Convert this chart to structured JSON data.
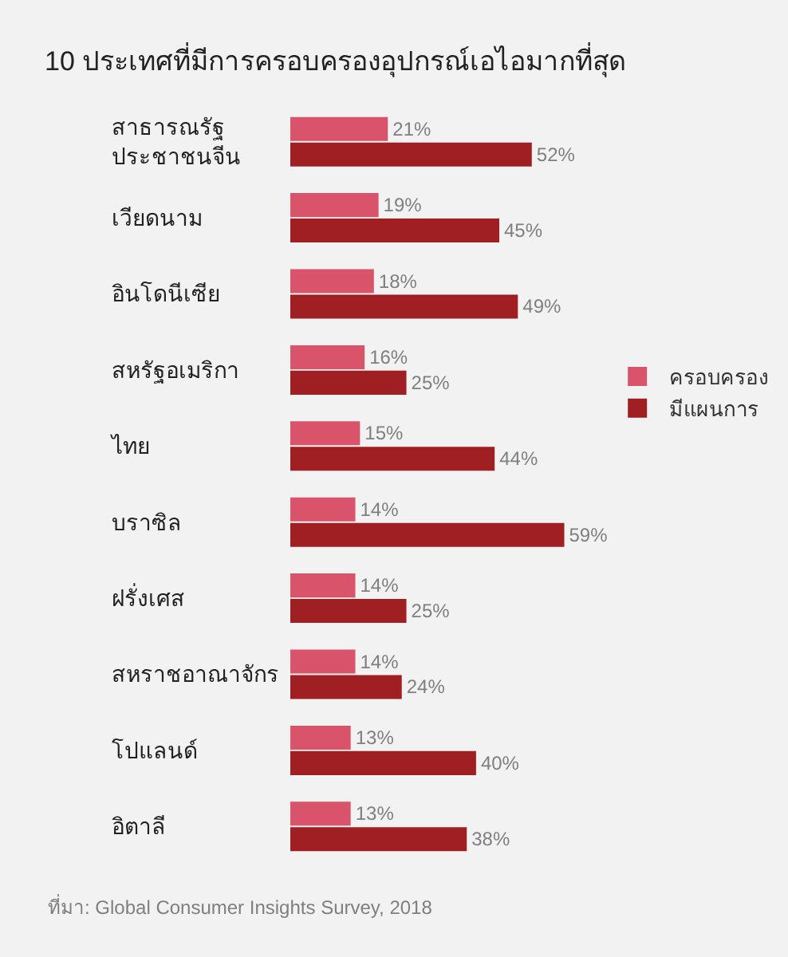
{
  "chart_data": {
    "type": "bar",
    "orientation": "horizontal",
    "title": "10 ประเทศที่มีการครอบครองอุปกรณ์เอไอมากที่สุด",
    "categories": [
      "สาธารณรัฐ\nประชาชนจีน",
      "เวียดนาม",
      "อินโดนีเซีย",
      "สหรัฐอเมริกา",
      "ไทย",
      "บราซิล",
      "ฝรั่งเศส",
      "สหราชอาณาจักร",
      "โปแลนด์",
      "อิตาลี"
    ],
    "series": [
      {
        "name": "ครอบครอง",
        "color": "#d9536a",
        "values": [
          21,
          19,
          18,
          16,
          15,
          14,
          14,
          14,
          13,
          13
        ],
        "value_labels": [
          "21%",
          "19%",
          "18%",
          "16%",
          "15%",
          "14%",
          "14%",
          "14%",
          "13%",
          "13%"
        ]
      },
      {
        "name": "มีแผนการ",
        "color": "#a01f22",
        "values": [
          52,
          45,
          49,
          25,
          44,
          59,
          25,
          24,
          40,
          38
        ],
        "value_labels": [
          "52%",
          "45%",
          "49%",
          "25%",
          "44%",
          "59%",
          "25%",
          "24%",
          "40%",
          "38%"
        ]
      }
    ],
    "annotations": [
      "ที่มา: Global Consumer Insights Survey, 2018"
    ],
    "legend": "right",
    "tick_labels": "y"
  }
}
